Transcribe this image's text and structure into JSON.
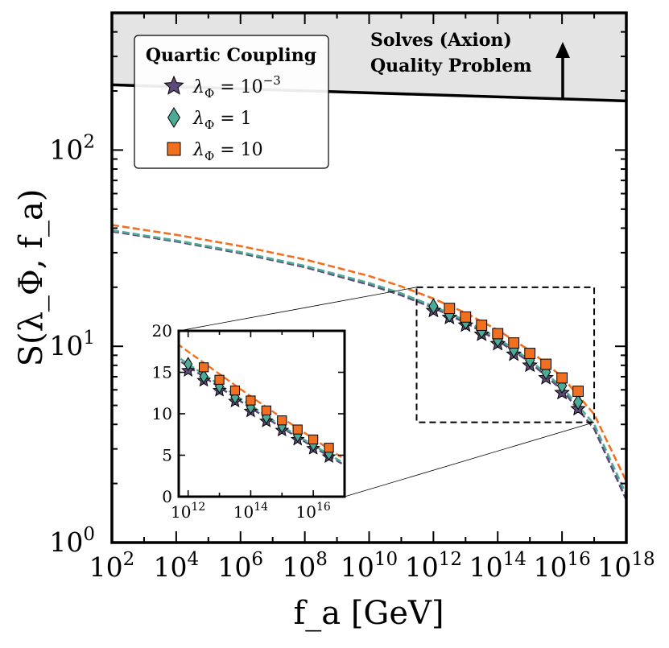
{
  "chart_data": {
    "type": "line",
    "xlabel": "f_a [GeV]",
    "ylabel": "S(λ_Φ, f_a)",
    "x_scale": "log",
    "y_scale": "log",
    "xlim": [
      100.0,
      1e+18
    ],
    "ylim": [
      1,
      500
    ],
    "grid": false,
    "x_ticks": [
      {
        "value": 100.0,
        "base": "10",
        "exp": "2"
      },
      {
        "value": 10000.0,
        "base": "10",
        "exp": "4"
      },
      {
        "value": 1000000.0,
        "base": "10",
        "exp": "6"
      },
      {
        "value": 100000000.0,
        "base": "10",
        "exp": "8"
      },
      {
        "value": 10000000000.0,
        "base": "10",
        "exp": "10"
      },
      {
        "value": 1000000000000.0,
        "base": "10",
        "exp": "12"
      },
      {
        "value": 100000000000000.0,
        "base": "10",
        "exp": "14"
      },
      {
        "value": 1e+16,
        "base": "10",
        "exp": "16"
      },
      {
        "value": 1e+18,
        "base": "10",
        "exp": "18"
      }
    ],
    "y_ticks": [
      {
        "value": 1,
        "base": "10",
        "exp": "0"
      },
      {
        "value": 10,
        "base": "10",
        "exp": "1"
      },
      {
        "value": 100,
        "base": "10",
        "exp": "2"
      }
    ],
    "quality_band": {
      "text_line1": "Solves (Axion)",
      "text_line2": "Quality Problem",
      "boundary_x": [
        100.0,
        1e+18
      ],
      "boundary_y": [
        215,
        178
      ],
      "fill": "#e4e4e4",
      "arrow": "up"
    },
    "legend": {
      "title": "Quartic Coupling",
      "placement": "top-left",
      "entries": [
        {
          "series": 0,
          "label_main": "λ",
          "label_sub": "Φ",
          "label_eq": " = 10",
          "label_sup": "−3"
        },
        {
          "series": 1,
          "label_main": "λ",
          "label_sub": "Φ",
          "label_eq": " = 1",
          "label_sup": ""
        },
        {
          "series": 2,
          "label_main": "λ",
          "label_sub": "Φ",
          "label_eq": " = 10",
          "label_sup": ""
        }
      ]
    },
    "series": [
      {
        "name": "λΦ = 10^-3",
        "marker": "star",
        "color": "#5e4a7a",
        "curve_x": [
          100.0,
          10000.0,
          1000000.0,
          100000000.0,
          10000000000.0,
          100000000000.0,
          1000000000000.0,
          10000000000000.0,
          100000000000000.0,
          1000000000000000.0,
          1e+16,
          1e+17,
          1e+18
        ],
        "curve_y": [
          38.5,
          34.2,
          29.8,
          25.3,
          20.6,
          18.2,
          15.7,
          13.2,
          10.7,
          8.3,
          6.0,
          3.8,
          1.65
        ],
        "points_x": [
          1000000000000.0,
          3160000000000.0,
          10000000000000.0,
          31600000000000.0,
          100000000000000.0,
          316000000000000.0,
          1000000000000000.0,
          3160000000000000.0,
          1e+16,
          3.16e+16
        ],
        "points_y": [
          15.2,
          14.0,
          12.8,
          11.5,
          10.3,
          9.1,
          8.0,
          6.9,
          5.8,
          4.8
        ]
      },
      {
        "name": "λΦ = 1",
        "marker": "diamond",
        "color": "#4daa96",
        "curve_x": [
          100.0,
          10000.0,
          1000000.0,
          100000000.0,
          10000000000.0,
          100000000000.0,
          1000000000000.0,
          10000000000000.0,
          100000000000000.0,
          1000000000000000.0,
          1e+16,
          1e+17,
          1e+18
        ],
        "curve_y": [
          39.0,
          34.6,
          30.2,
          25.7,
          21.0,
          18.6,
          16.0,
          13.5,
          11.0,
          8.5,
          6.2,
          4.0,
          1.75
        ],
        "points_x": [
          1000000000000.0,
          3160000000000.0,
          10000000000000.0,
          31600000000000.0,
          100000000000000.0,
          316000000000000.0,
          1000000000000000.0,
          3160000000000000.0,
          1e+16,
          3.16e+16
        ],
        "points_y": [
          16.0,
          14.5,
          13.3,
          12.0,
          10.8,
          9.6,
          8.5,
          7.4,
          6.3,
          5.2
        ]
      },
      {
        "name": "λΦ = 10",
        "marker": "square",
        "color": "#f07020",
        "curve_x": [
          100.0,
          10000.0,
          1000000.0,
          100000000.0,
          10000000000.0,
          100000000000.0,
          1000000000000.0,
          10000000000000.0,
          100000000000000.0,
          1000000000000000.0,
          1e+16,
          1e+17,
          1e+18
        ],
        "curve_y": [
          41.5,
          37.0,
          32.4,
          27.7,
          22.8,
          20.2,
          17.5,
          14.8,
          12.1,
          9.5,
          7.0,
          4.5,
          2.05
        ],
        "points_x": [
          3160000000000.0,
          10000000000000.0,
          31600000000000.0,
          100000000000000.0,
          316000000000000.0,
          1000000000000000.0,
          3160000000000000.0,
          1e+16,
          3.16e+16
        ],
        "points_y": [
          15.6,
          14.1,
          12.8,
          11.6,
          10.4,
          9.2,
          8.1,
          6.9,
          5.9
        ]
      }
    ],
    "zoom_box": {
      "xlim": [
        300000000000.0,
        1e+17
      ],
      "ylim": [
        4.1,
        20
      ]
    },
    "inset": {
      "x_scale": "log",
      "y_scale": "linear",
      "xlim": [
        500000000000.0,
        1e+17
      ],
      "ylim": [
        0,
        20
      ],
      "x_ticks": [
        {
          "value": 1000000000000.0,
          "base": "10",
          "exp": "12"
        },
        {
          "value": 100000000000000.0,
          "base": "10",
          "exp": "14"
        },
        {
          "value": 1e+16,
          "base": "10",
          "exp": "16"
        }
      ],
      "y_ticks": [
        "0",
        "5",
        "10",
        "15",
        "20"
      ]
    }
  }
}
